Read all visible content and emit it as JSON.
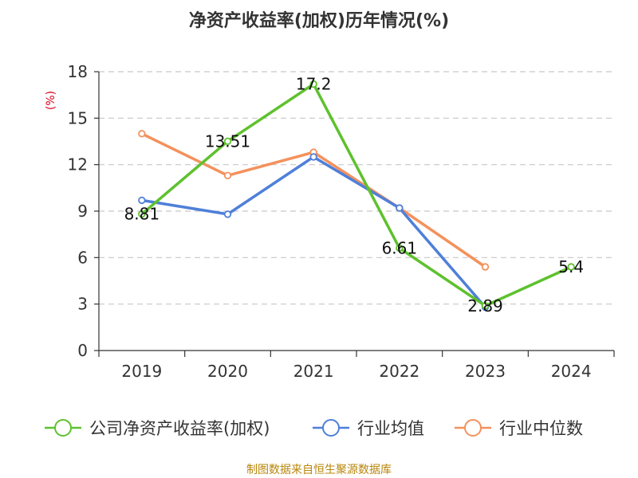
{
  "chart_data": {
    "type": "line",
    "title": "净资产收益率(加权)历年情况(%)",
    "ylabel": "(%)",
    "categories": [
      "2019",
      "2020",
      "2021",
      "2022",
      "2023",
      "2024"
    ],
    "ylim": [
      0,
      18
    ],
    "yticks": [
      "0",
      "3",
      "6",
      "9",
      "12",
      "15",
      "18"
    ],
    "grid": true,
    "legend_position": "bottom",
    "series": [
      {
        "name": "公司净资产收益率(加权)",
        "color": "#5ec12e",
        "values": [
          8.81,
          13.51,
          17.2,
          6.61,
          2.89,
          5.4
        ],
        "labels": [
          "8.81",
          "13.51",
          "17.2",
          "6.61",
          "2.89",
          "5.4"
        ]
      },
      {
        "name": "行业均值",
        "color": "#4f7fd9",
        "values": [
          9.7,
          8.8,
          12.5,
          9.2,
          2.8,
          null
        ]
      },
      {
        "name": "行业中位数",
        "color": "#f4915c",
        "values": [
          14.0,
          11.3,
          12.8,
          9.2,
          5.4,
          null
        ]
      }
    ],
    "ylabel_color": "#d9001b",
    "source_color": "#b8860b"
  },
  "source_text": "制图数据来自恒生聚源数据库"
}
